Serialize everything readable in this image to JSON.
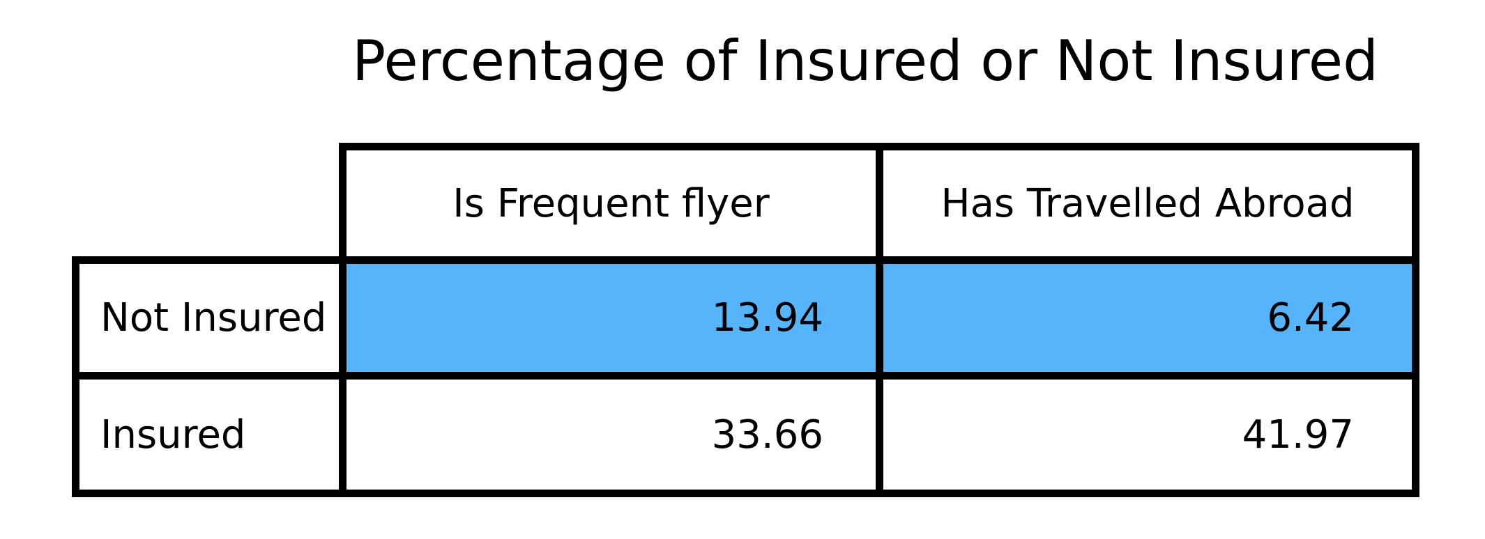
{
  "chart_data": {
    "type": "table",
    "title": "Percentage of Insured or Not Insured",
    "columns": [
      "Is Frequent flyer",
      "Has Travelled Abroad"
    ],
    "rows": [
      {
        "label": "Not Insured",
        "values": [
          "13.94",
          "6.42"
        ],
        "highlight": true
      },
      {
        "label": "Insured",
        "values": [
          "33.66",
          "41.97"
        ],
        "highlight": false
      }
    ]
  },
  "colors": {
    "highlight_row": "#56B4FB",
    "cell_background": "#FFFFFF",
    "border": "#000000",
    "text": "#000000"
  }
}
